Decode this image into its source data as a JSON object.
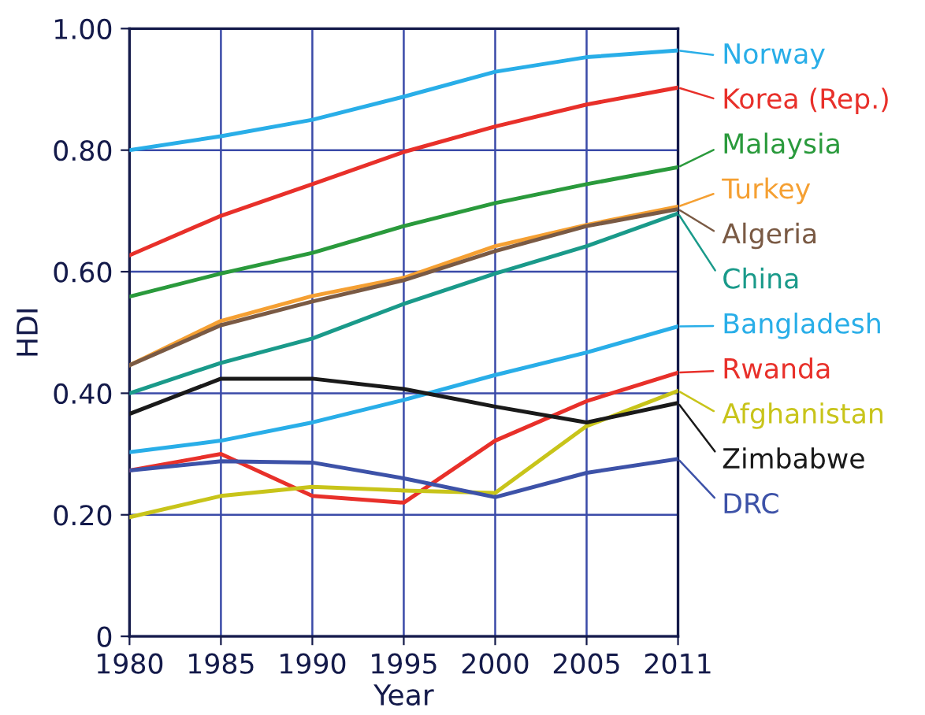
{
  "chart_data": {
    "type": "line",
    "xlabel": "Year",
    "ylabel": "HDI",
    "categories": [
      "1980",
      "1985",
      "1990",
      "1995",
      "2000",
      "2005",
      "2011"
    ],
    "ylim": [
      0,
      1.0
    ],
    "yticks": [
      {
        "value": 0,
        "label": "0"
      },
      {
        "value": 0.2,
        "label": "0.20"
      },
      {
        "value": 0.4,
        "label": "0.40"
      },
      {
        "value": 0.6,
        "label": "0.60"
      },
      {
        "value": 0.8,
        "label": "0.80"
      },
      {
        "value": 1.0,
        "label": "1.00"
      }
    ],
    "grid": true,
    "legend": "right",
    "marker": "none",
    "line_style": "solid",
    "series": [
      {
        "name": "Norway",
        "color": "#29aee8",
        "values": [
          0.8,
          0.823,
          0.85,
          0.888,
          0.929,
          0.953,
          0.964
        ]
      },
      {
        "name": "Korea (Rep.)",
        "color": "#e8302a",
        "values": [
          0.627,
          0.692,
          0.744,
          0.797,
          0.839,
          0.875,
          0.903
        ]
      },
      {
        "name": "Malaysia",
        "color": "#2a9a3c",
        "values": [
          0.559,
          0.597,
          0.631,
          0.675,
          0.713,
          0.744,
          0.772
        ]
      },
      {
        "name": "Turkey",
        "color": "#f5a033",
        "values": [
          0.446,
          0.519,
          0.56,
          0.59,
          0.642,
          0.677,
          0.707
        ]
      },
      {
        "name": "Algeria",
        "color": "#7a5a44",
        "values": [
          0.446,
          0.512,
          0.551,
          0.586,
          0.634,
          0.675,
          0.703
        ]
      },
      {
        "name": "China",
        "color": "#1a9a8a",
        "values": [
          0.4,
          0.45,
          0.49,
          0.547,
          0.597,
          0.642,
          0.696
        ]
      },
      {
        "name": "Bangladesh",
        "color": "#29aee8",
        "values": [
          0.303,
          0.322,
          0.352,
          0.389,
          0.43,
          0.467,
          0.51
        ]
      },
      {
        "name": "Rwanda",
        "color": "#e8302a",
        "values": [
          0.273,
          0.3,
          0.231,
          0.22,
          0.322,
          0.387,
          0.434
        ]
      },
      {
        "name": "Afghanistan",
        "color": "#c8c41a",
        "values": [
          0.196,
          0.231,
          0.246,
          0.24,
          0.236,
          0.346,
          0.404
        ]
      },
      {
        "name": "Zimbabwe",
        "color": "#1a1a1a",
        "values": [
          0.366,
          0.424,
          0.424,
          0.407,
          0.378,
          0.352,
          0.384
        ]
      },
      {
        "name": "DRC",
        "color": "#3d52a8",
        "values": [
          0.273,
          0.288,
          0.286,
          0.26,
          0.229,
          0.269,
          0.292
        ]
      }
    ]
  }
}
